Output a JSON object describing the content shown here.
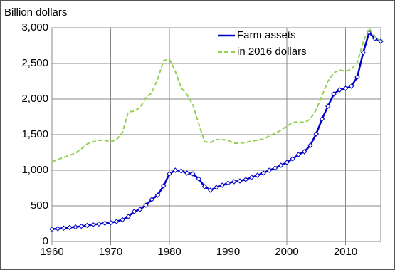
{
  "chart_data": {
    "type": "line",
    "ylabel": "Billion dollars",
    "x": [
      1960,
      1961,
      1962,
      1963,
      1964,
      1965,
      1966,
      1967,
      1968,
      1969,
      1970,
      1971,
      1972,
      1973,
      1974,
      1975,
      1976,
      1977,
      1978,
      1979,
      1980,
      1981,
      1982,
      1983,
      1984,
      1985,
      1986,
      1987,
      1988,
      1989,
      1990,
      1991,
      1992,
      1993,
      1994,
      1995,
      1996,
      1997,
      1998,
      1999,
      2000,
      2001,
      2002,
      2003,
      2004,
      2005,
      2006,
      2007,
      2008,
      2009,
      2010,
      2011,
      2012,
      2013,
      2014,
      2015,
      2016
    ],
    "series": [
      {
        "name": "Farm assets",
        "color": "#0000cc",
        "values": [
          174,
          180,
          188,
          196,
          204,
          214,
          226,
          236,
          246,
          256,
          264,
          280,
          305,
          350,
          420,
          450,
          510,
          590,
          650,
          780,
          950,
          1000,
          990,
          960,
          950,
          880,
          770,
          720,
          760,
          790,
          820,
          840,
          850,
          870,
          900,
          930,
          960,
          1000,
          1030,
          1070,
          1110,
          1160,
          1220,
          1260,
          1350,
          1510,
          1720,
          1900,
          2070,
          2130,
          2150,
          2180,
          2310,
          2650,
          2930,
          2850,
          2810
        ]
      },
      {
        "name": "in 2016 dollars",
        "color": "#92d050",
        "values": [
          1120,
          1150,
          1180,
          1210,
          1240,
          1300,
          1370,
          1400,
          1420,
          1420,
          1400,
          1430,
          1530,
          1820,
          1830,
          1880,
          2020,
          2090,
          2280,
          2540,
          2560,
          2390,
          2160,
          2060,
          1920,
          1650,
          1400,
          1390,
          1430,
          1430,
          1420,
          1380,
          1380,
          1390,
          1410,
          1420,
          1440,
          1480,
          1520,
          1560,
          1620,
          1670,
          1680,
          1670,
          1720,
          1850,
          2050,
          2250,
          2370,
          2410,
          2390,
          2420,
          2510,
          2800,
          2990,
          2880,
          2810
        ]
      }
    ],
    "xlim": [
      1960,
      2016
    ],
    "xticks": [
      1960,
      1970,
      1980,
      1990,
      2000,
      2010
    ],
    "ylim": [
      0,
      3000
    ],
    "yticks": [
      0,
      500,
      {
        "value": 1000,
        "label": "1,000"
      },
      {
        "value": 1500,
        "label": "1,500"
      },
      {
        "value": 2000,
        "label": "2,000"
      },
      {
        "value": 2500,
        "label": "2,500"
      },
      {
        "value": 3000,
        "label": "3,000"
      }
    ],
    "grid": true,
    "legend": "top"
  }
}
